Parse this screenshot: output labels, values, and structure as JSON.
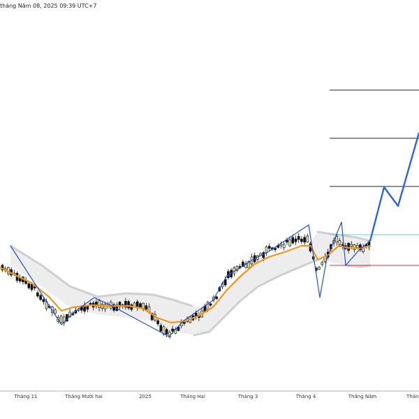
{
  "header": {
    "timestamp": "tháng Năm 08, 2025 09:39 UTC+7"
  },
  "colors": {
    "bull_candle": "#e8e2a0",
    "bear_candle": "#111111",
    "ema": "#f0961e",
    "channel": "#cfcfcf",
    "zigzag": "#1f4fd8",
    "projection": "#2b63e3",
    "target_line": "#222222",
    "tp_line": "#5fd0c8",
    "sl_line": "#e03040"
  },
  "chart_data": {
    "type": "candlestick",
    "x_tick_labels": [
      "Tháng 11",
      "Tháng Mười hai",
      "2025",
      "Tháng Hai",
      "Tháng 3",
      "Tháng 4",
      "Tháng Năm",
      "Tháng"
    ],
    "zigzag_pattern": "Elliott-style swing legs with projected extension",
    "indicators": [
      "EMA (orange)",
      "Envelope / channel (grey band)"
    ],
    "levels": [
      "target 1",
      "target 2",
      "target 3",
      "take-profit",
      "stop-loss"
    ],
    "grid": false
  }
}
